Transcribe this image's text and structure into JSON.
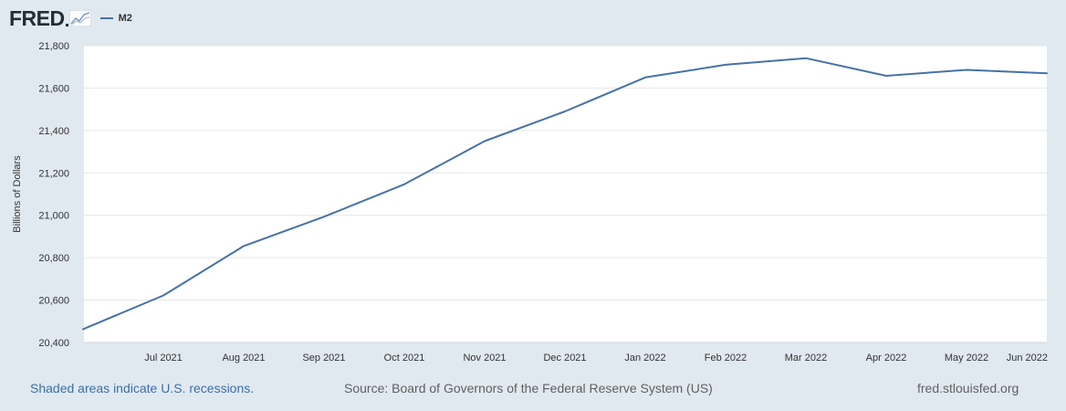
{
  "logo": {
    "text": "FRED"
  },
  "legend": {
    "series_name": "M2",
    "color": "#4572a7"
  },
  "footer": {
    "recession_note": "Shaded areas indicate U.S. recessions.",
    "source": "Source: Board of Governors of the Federal Reserve System (US)",
    "site": "fred.stlouisfed.org"
  },
  "chart_data": {
    "type": "line",
    "title": "",
    "xlabel": "",
    "ylabel": "Billions of Dollars",
    "ylim": [
      20400,
      21800
    ],
    "yticks": [
      20400,
      20600,
      20800,
      21000,
      21200,
      21400,
      21600,
      21800
    ],
    "ytick_labels": [
      "20,400",
      "20,600",
      "20,800",
      "21,000",
      "21,200",
      "21,400",
      "21,600",
      "21,800"
    ],
    "x": [
      "2021-06",
      "2021-07",
      "2021-08",
      "2021-09",
      "2021-10",
      "2021-11",
      "2021-12",
      "2022-01",
      "2022-02",
      "2022-03",
      "2022-04",
      "2022-05",
      "2022-06"
    ],
    "xtick_labels": [
      "",
      "Jul 2021",
      "Aug 2021",
      "Sep 2021",
      "Oct 2021",
      "Nov 2021",
      "Dec 2021",
      "Jan 2022",
      "Feb 2022",
      "Mar 2022",
      "Apr 2022",
      "May 2022",
      "Jun 2022"
    ],
    "series": [
      {
        "name": "M2",
        "color": "#4572a7",
        "values": [
          20463,
          20622,
          20855,
          20993,
          21146,
          21350,
          21490,
          21650,
          21710,
          21741,
          21658,
          21686,
          21670
        ]
      }
    ],
    "grid": true,
    "legend_position": "top-left"
  }
}
